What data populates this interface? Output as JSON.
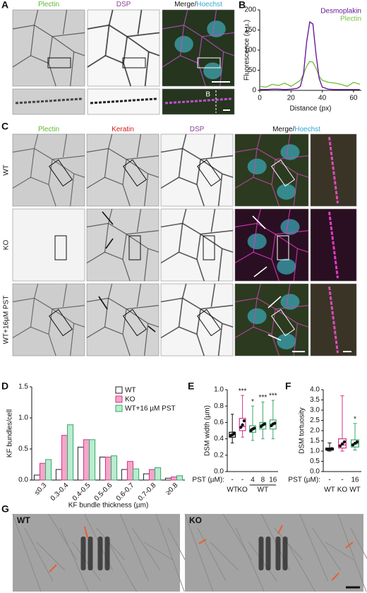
{
  "figure": {
    "panels": [
      "A",
      "B",
      "C",
      "D",
      "E",
      "F",
      "G"
    ],
    "a_columns": [
      "Plectin",
      "DSP",
      "Merge/",
      "Hoechst"
    ],
    "a_inset_label": "B",
    "c_columns": [
      "Plectin",
      "Keratin",
      "DSP",
      "Merge/",
      "Hoechst"
    ],
    "c_rows": [
      "WT",
      "KO",
      "WT+16µM PST"
    ],
    "g_labels": [
      "WT",
      "KO"
    ]
  },
  "chart_data": [
    {
      "type": "line",
      "y_label": "Fluorescence (a.u.)",
      "x_label": "Distance (px)",
      "xlim": [
        0,
        65
      ],
      "xticks": [
        0,
        20,
        40,
        60
      ],
      "ylim": [
        0,
        200
      ],
      "yticks": [
        0,
        50,
        100,
        150,
        200
      ],
      "legend": "top-right",
      "x": [
        0,
        4,
        8,
        12,
        16,
        20,
        24,
        26,
        28,
        30,
        32,
        34,
        36,
        38,
        40,
        44,
        48,
        52,
        56,
        60,
        64
      ],
      "series": [
        {
          "name": "Desmoplakin",
          "color": "#6a1b9a",
          "values": [
            2,
            2,
            3,
            3,
            2,
            3,
            5,
            10,
            40,
            120,
            170,
            165,
            90,
            30,
            8,
            3,
            2,
            2,
            2,
            2,
            2
          ]
        },
        {
          "name": "Plectin",
          "color": "#7ac142",
          "values": [
            10,
            8,
            15,
            12,
            18,
            10,
            20,
            25,
            40,
            60,
            72,
            70,
            55,
            35,
            25,
            20,
            18,
            15,
            10,
            20,
            15
          ]
        }
      ]
    },
    {
      "type": "bar",
      "y_label": "KF bundles/cell",
      "x_label": "KF bundle thickness (µm)",
      "categories": [
        "≤0.3",
        "0.3-0.4",
        "0.4-0.5",
        "0.5-0.6",
        "0.6-0.7",
        "0.7-0.8",
        "≥0.8"
      ],
      "ylim": [
        0,
        1.5
      ],
      "yticks": [
        {
          "value": 0,
          "label": "0.0"
        },
        {
          "value": 0.5,
          "label": "0.5"
        },
        {
          "value": 1,
          "label": "1.0"
        },
        {
          "value": 1.5,
          "label": "1.5"
        }
      ],
      "legend": "top-right",
      "series": [
        {
          "name": "WT",
          "color": "#ffffff",
          "edgecolor": "#222222",
          "values": [
            0.08,
            0.17,
            0.53,
            0.37,
            0.17,
            0.1,
            0.03
          ]
        },
        {
          "name": "KO",
          "color": "#f4a6c8",
          "edgecolor": "#d6338a",
          "values": [
            0.27,
            0.72,
            0.65,
            0.37,
            0.3,
            0.17,
            0.05
          ]
        },
        {
          "name": "WT+16 µM PST",
          "color": "#b9ecd0",
          "edgecolor": "#3aa76d",
          "values": [
            0.33,
            0.89,
            0.65,
            0.39,
            0.18,
            0.2,
            0.07
          ]
        }
      ]
    },
    {
      "type": "box",
      "y_label": "DSM width (µm)",
      "x_label": "PST (µM):",
      "categories": [
        "-",
        "-",
        "4",
        "8",
        "16"
      ],
      "group_labels": [
        "WT",
        "KO",
        null,
        "WT",
        null
      ],
      "ylim": [
        0,
        1.0
      ],
      "yticks": [
        {
          "value": 0,
          "label": "0.0"
        },
        {
          "value": 0.2,
          "label": "0.2"
        },
        {
          "value": 0.4,
          "label": "0.4"
        },
        {
          "value": 0.6,
          "label": "0.6"
        },
        {
          "value": 0.8,
          "label": "0.8"
        },
        {
          "value": 1.0,
          "label": "1.0"
        }
      ],
      "boxes": [
        {
          "color": "#111111",
          "min": 0.35,
          "q1": 0.42,
          "median": 0.45,
          "q3": 0.48,
          "max": 0.7,
          "points": [
            0.44,
            0.45,
            0.47
          ]
        },
        {
          "color": "#d6338a",
          "min": 0.42,
          "q1": 0.5,
          "median": 0.55,
          "q3": 0.65,
          "max": 0.93,
          "points": [
            0.54,
            0.57,
            0.62
          ],
          "significance": "***"
        },
        {
          "color": "#3aa76d",
          "min": 0.38,
          "q1": 0.48,
          "median": 0.52,
          "q3": 0.56,
          "max": 0.8,
          "points": [
            0.5,
            0.52,
            0.53
          ],
          "significance": "*"
        },
        {
          "color": "#3aa76d",
          "min": 0.4,
          "q1": 0.52,
          "median": 0.57,
          "q3": 0.6,
          "max": 0.85,
          "points": [
            0.55,
            0.57,
            0.58
          ],
          "significance": "***"
        },
        {
          "color": "#3aa76d",
          "min": 0.4,
          "q1": 0.52,
          "median": 0.58,
          "q3": 0.63,
          "max": 0.87,
          "points": [
            0.56,
            0.58,
            0.59
          ],
          "significance": "***"
        }
      ]
    },
    {
      "type": "box",
      "y_label": "DSM tortuosity",
      "x_label": "PST (µM):",
      "categories": [
        "-",
        "-",
        "16"
      ],
      "group_labels": [
        "WT",
        "KO",
        "WT"
      ],
      "ylim": [
        0,
        4
      ],
      "yticks": [
        {
          "value": 0,
          "label": "0.0"
        },
        {
          "value": 0.5,
          "label": "0.5"
        },
        {
          "value": 1,
          "label": "1.0"
        },
        {
          "value": 1.5,
          "label": "1.5"
        },
        {
          "value": 2,
          "label": "2.0"
        },
        {
          "value": 2.5,
          "label": "2.5"
        },
        {
          "value": 3,
          "label": "3.0"
        },
        {
          "value": 3.5,
          "label": "3.5"
        },
        {
          "value": 4,
          "label": "4.0"
        }
      ],
      "boxes": [
        {
          "color": "#111111",
          "min": 1.0,
          "q1": 1.05,
          "median": 1.1,
          "q3": 1.15,
          "max": 1.4,
          "points": [
            1.08,
            1.1,
            1.12
          ]
        },
        {
          "color": "#d6338a",
          "min": 1.0,
          "q1": 1.15,
          "median": 1.3,
          "q3": 1.6,
          "max": 3.7,
          "points": [
            1.25,
            1.35,
            1.45
          ]
        },
        {
          "color": "#3aa76d",
          "min": 1.05,
          "q1": 1.2,
          "median": 1.35,
          "q3": 1.55,
          "max": 2.35,
          "points": [
            1.3,
            1.38,
            1.45
          ],
          "significance": "*"
        }
      ]
    }
  ]
}
